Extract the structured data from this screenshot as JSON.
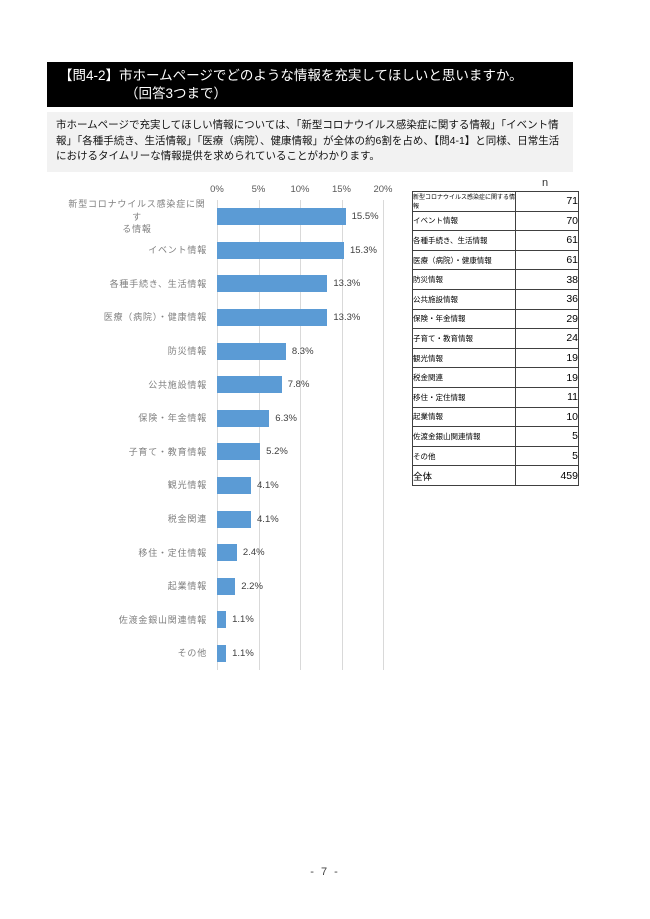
{
  "page": {
    "title_line1": "【問4-2】市ホームページでどのような情報を充実してほしいと思いますか。",
    "title_line2": "（回答3つまで）",
    "intro": "市ホームページで充実してほしい情報については、「新型コロナウイルス感染症に関する情報」「イベント情報」「各種手続き、生活情報」「医療（病院）、健康情報」が全体の約6割を占め、【問4-1】と同様、日常生活におけるタイムリーな情報提供を求められていることがわかります。",
    "footer": "- 7 -"
  },
  "chart_data": {
    "type": "bar",
    "orientation": "horizontal",
    "title": "",
    "xlabel": "",
    "ylabel": "",
    "axis_position": "top",
    "axis_ticks": [
      "0%",
      "5%",
      "10%",
      "15%",
      "20%"
    ],
    "xlim": [
      0,
      20
    ],
    "grid": true,
    "bar_color": "#5b9bd5",
    "gridline_color": "#d9d9d9",
    "categories": [
      "新型コロナウイルス感染症に関する情報",
      "イベント情報",
      "各種手続き、生活情報",
      "医療（病院）・健康情報",
      "防災情報",
      "公共施設情報",
      "保険・年金情報",
      "子育て・教育情報",
      "観光情報",
      "税金関連",
      "移住・定住情報",
      "起業情報",
      "佐渡金銀山関連情報",
      "その他"
    ],
    "values": [
      15.5,
      15.3,
      13.3,
      13.3,
      8.3,
      7.8,
      6.3,
      5.2,
      4.1,
      4.1,
      2.4,
      2.2,
      1.1,
      1.1
    ],
    "value_labels": [
      "15.5%",
      "15.3%",
      "13.3%",
      "13.3%",
      "8.3%",
      "7.8%",
      "6.3%",
      "5.2%",
      "4.1%",
      "4.1%",
      "2.4%",
      "2.2%",
      "1.1%",
      "1.1%"
    ]
  },
  "table": {
    "header": "n",
    "rows": [
      {
        "label": "新型コロナウイルス感染症に関する情報",
        "n": 71
      },
      {
        "label": "イベント情報",
        "n": 70
      },
      {
        "label": "各種手続き、生活情報",
        "n": 61
      },
      {
        "label": "医療（病院）・健康情報",
        "n": 61
      },
      {
        "label": "防災情報",
        "n": 38
      },
      {
        "label": "公共施設情報",
        "n": 36
      },
      {
        "label": "保険・年金情報",
        "n": 29
      },
      {
        "label": "子育て・教育情報",
        "n": 24
      },
      {
        "label": "観光情報",
        "n": 19
      },
      {
        "label": "税金関連",
        "n": 19
      },
      {
        "label": "移住・定住情報",
        "n": 11
      },
      {
        "label": "起業情報",
        "n": 10
      },
      {
        "label": "佐渡金銀山関連情報",
        "n": 5
      },
      {
        "label": "その他",
        "n": 5
      },
      {
        "label": "全体",
        "n": 459
      }
    ]
  }
}
